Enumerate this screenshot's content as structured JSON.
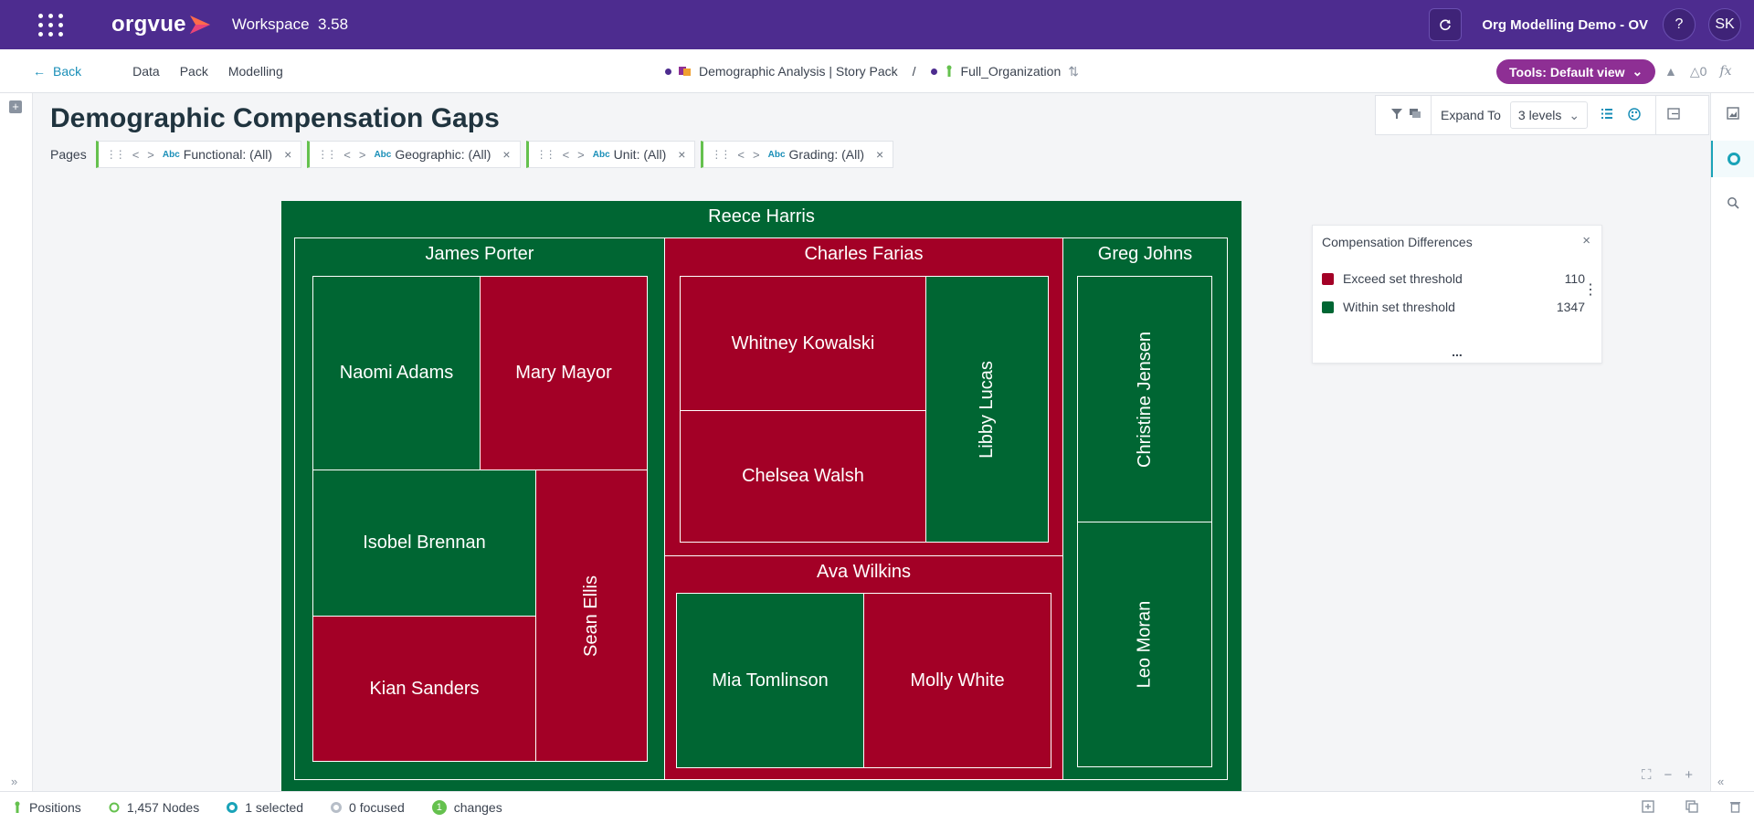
{
  "app": {
    "logo_text": "orgvue",
    "workspace_label": "Workspace",
    "version": "3.58",
    "demo_name": "Org Modelling Demo - OV",
    "help_label": "?",
    "user_initials": "SK"
  },
  "nav": {
    "back_label": "Back",
    "links": [
      "Data",
      "Pack",
      "Modelling"
    ],
    "crumb_1": "Demographic Analysis | Story Pack",
    "crumb_separator": "/",
    "crumb_2": "Full_Organization",
    "tools_label": "Tools: Default view",
    "flask_count": "0",
    "fx_label": "fx"
  },
  "page": {
    "title": "Demographic Compensation Gaps",
    "pages_label": "Pages",
    "filters": [
      {
        "type": "Abc",
        "label": "Functional: (All)"
      },
      {
        "type": "Abc",
        "label": "Geographic: (All)"
      },
      {
        "type": "Abc",
        "label": "Unit: (All)"
      },
      {
        "type": "Abc",
        "label": "Grading: (All)"
      }
    ]
  },
  "toolbar": {
    "expand_label": "Expand To",
    "levels_value": "3 levels"
  },
  "treemap": {
    "root": "Reece Harris",
    "groups": {
      "james_porter": "James Porter",
      "charles_farias": "Charles Farias",
      "greg_johns": "Greg Johns",
      "ava_wilkins": "Ava Wilkins"
    },
    "leaves": {
      "naomi_adams": "Naomi Adams",
      "mary_mayor": "Mary Mayor",
      "isobel_brennan": "Isobel Brennan",
      "kian_sanders": "Kian Sanders",
      "sean_ellis": "Sean Ellis",
      "whitney_kowalski": "Whitney Kowalski",
      "chelsea_walsh": "Chelsea Walsh",
      "libby_lucas": "Libby Lucas",
      "mia_tomlinson": "Mia Tomlinson",
      "molly_white": "Molly White",
      "christine_jensen": "Christine Jensen",
      "leo_moran": "Leo Moran"
    },
    "colors": {
      "exceed": "#a30026",
      "within": "#006633"
    }
  },
  "legend": {
    "title": "Compensation Differences",
    "items": [
      {
        "label": "Exceed set threshold",
        "count": "110",
        "color": "#a30026"
      },
      {
        "label": "Within set threshold",
        "count": "1347",
        "color": "#006633"
      }
    ],
    "more_label": "..."
  },
  "status": {
    "positions_label": "Positions",
    "nodes_label": "1,457 Nodes",
    "selected_label": "1 selected",
    "focused_label": "0 focused",
    "changes_count": "1",
    "changes_label": "changes"
  }
}
